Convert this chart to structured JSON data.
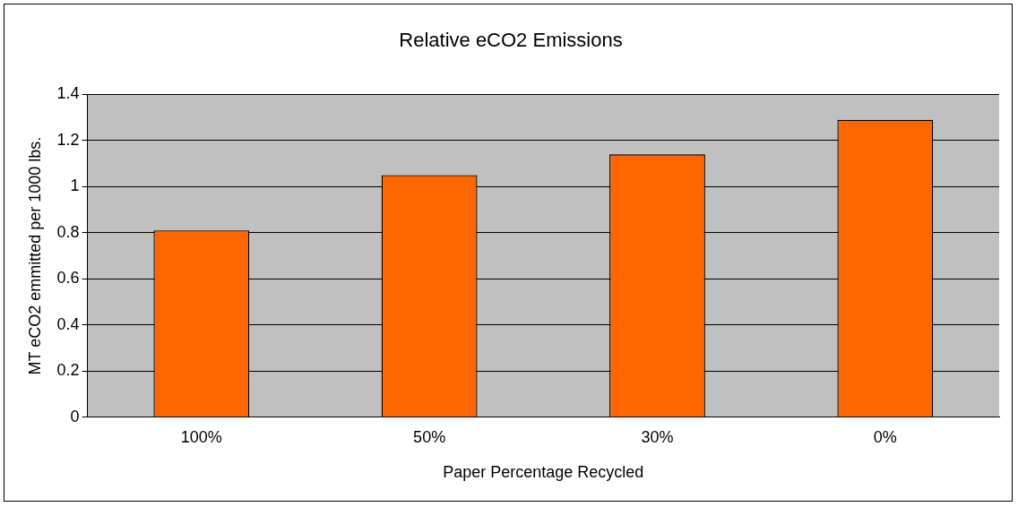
{
  "chart_data": {
    "type": "bar",
    "title": "Relative eCO2 Emissions",
    "xlabel": "Paper Percentage Recycled",
    "ylabel": "MT eCO2 emmitted per 1000 lbs.",
    "categories": [
      "100%",
      "50%",
      "30%",
      "0%"
    ],
    "values": [
      0.81,
      1.05,
      1.14,
      1.29
    ],
    "color": "#ff6600",
    "ylim": [
      0,
      1.4
    ],
    "yticks": [
      0,
      0.2,
      0.4,
      0.6,
      0.8,
      1,
      1.2,
      1.4
    ],
    "grid": "y",
    "legend": false
  }
}
